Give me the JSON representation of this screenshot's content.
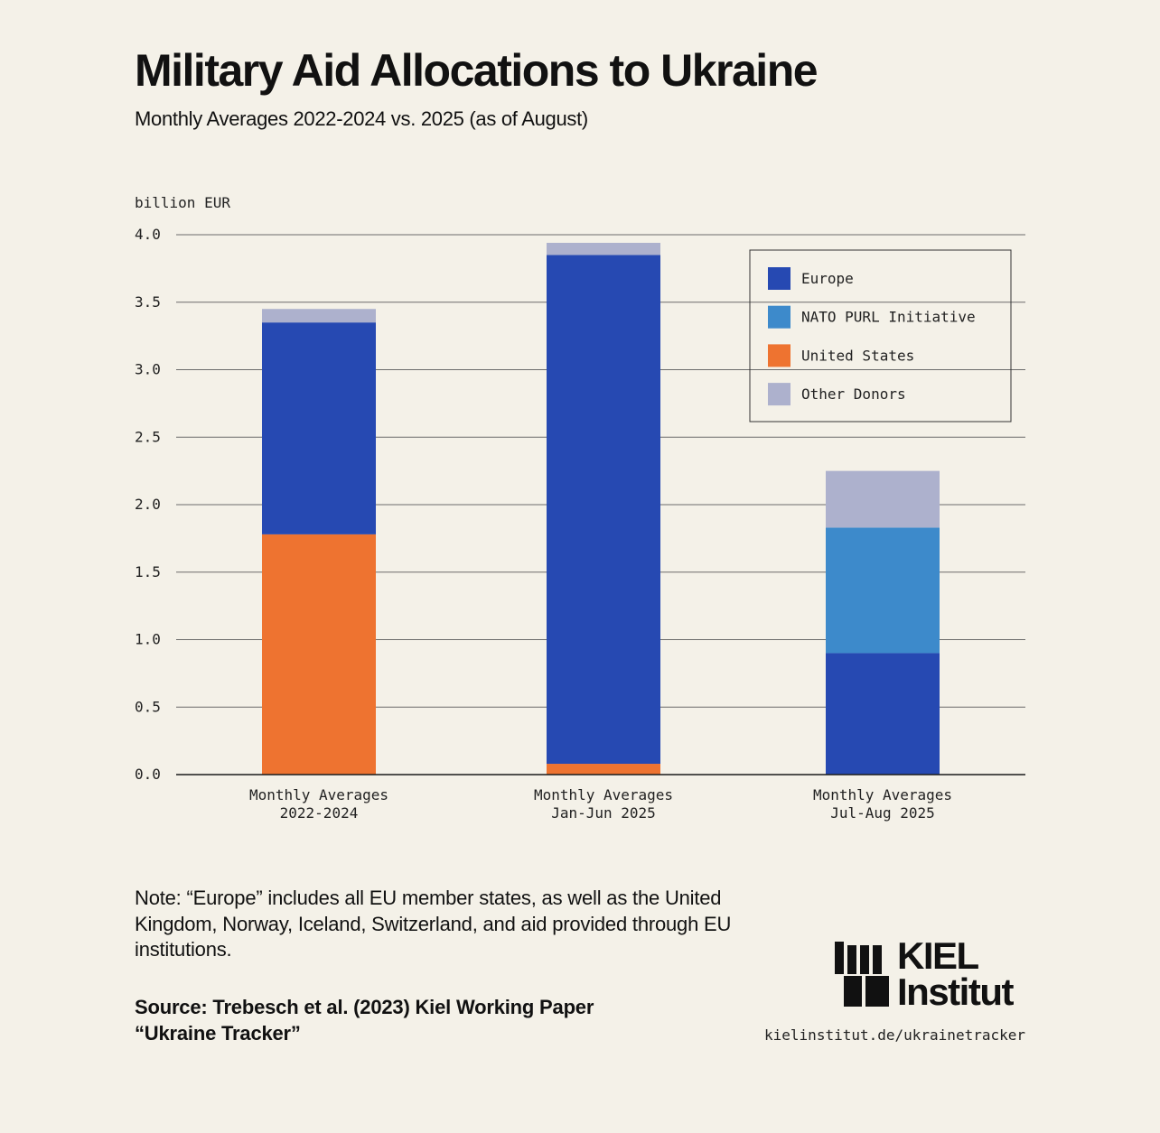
{
  "header": {
    "title": "Military Aid Allocations to Ukraine",
    "subtitle": "Monthly Averages 2022-2024 vs. 2025 (as of August)"
  },
  "chart_data": {
    "type": "bar",
    "stacked": true,
    "ylabel": "billion EUR",
    "ylim": [
      0,
      4.0
    ],
    "yticks": [
      "0.0",
      "0.5",
      "1.0",
      "1.5",
      "2.0",
      "2.5",
      "3.0",
      "3.5",
      "4.0"
    ],
    "categories": [
      [
        "Monthly Averages",
        "2022-2024"
      ],
      [
        "Monthly Averages",
        "Jan-Jun 2025"
      ],
      [
        "Monthly Averages",
        "Jul-Aug 2025"
      ]
    ],
    "series": [
      {
        "name": "United States",
        "color": "#ee7330",
        "values": [
          1.78,
          0.08,
          0.0
        ]
      },
      {
        "name": "Europe",
        "color": "#2649b2",
        "values": [
          1.57,
          3.77,
          0.9
        ]
      },
      {
        "name": "NATO PURL Initiative",
        "color": "#3d8acb",
        "values": [
          0.0,
          0.0,
          0.93
        ]
      },
      {
        "name": "Other Donors",
        "color": "#adb1cd",
        "values": [
          0.1,
          0.09,
          0.42
        ]
      }
    ],
    "legend_order": [
      "Europe",
      "NATO PURL Initiative",
      "United States",
      "Other Donors"
    ],
    "legend_position": "top-right"
  },
  "footer": {
    "note": "Note: “Europe” includes all EU member states, as well as the United Kingdom, Norway, Iceland, Switzerland, and aid provided through EU institutions.",
    "source": "Source: Trebesch et al. (2023) Kiel Working Paper “Ukraine Tracker”",
    "logo_line1": "KIEL",
    "logo_line2": "Institut",
    "url": "kielinstitut.de/ukrainetracker"
  }
}
